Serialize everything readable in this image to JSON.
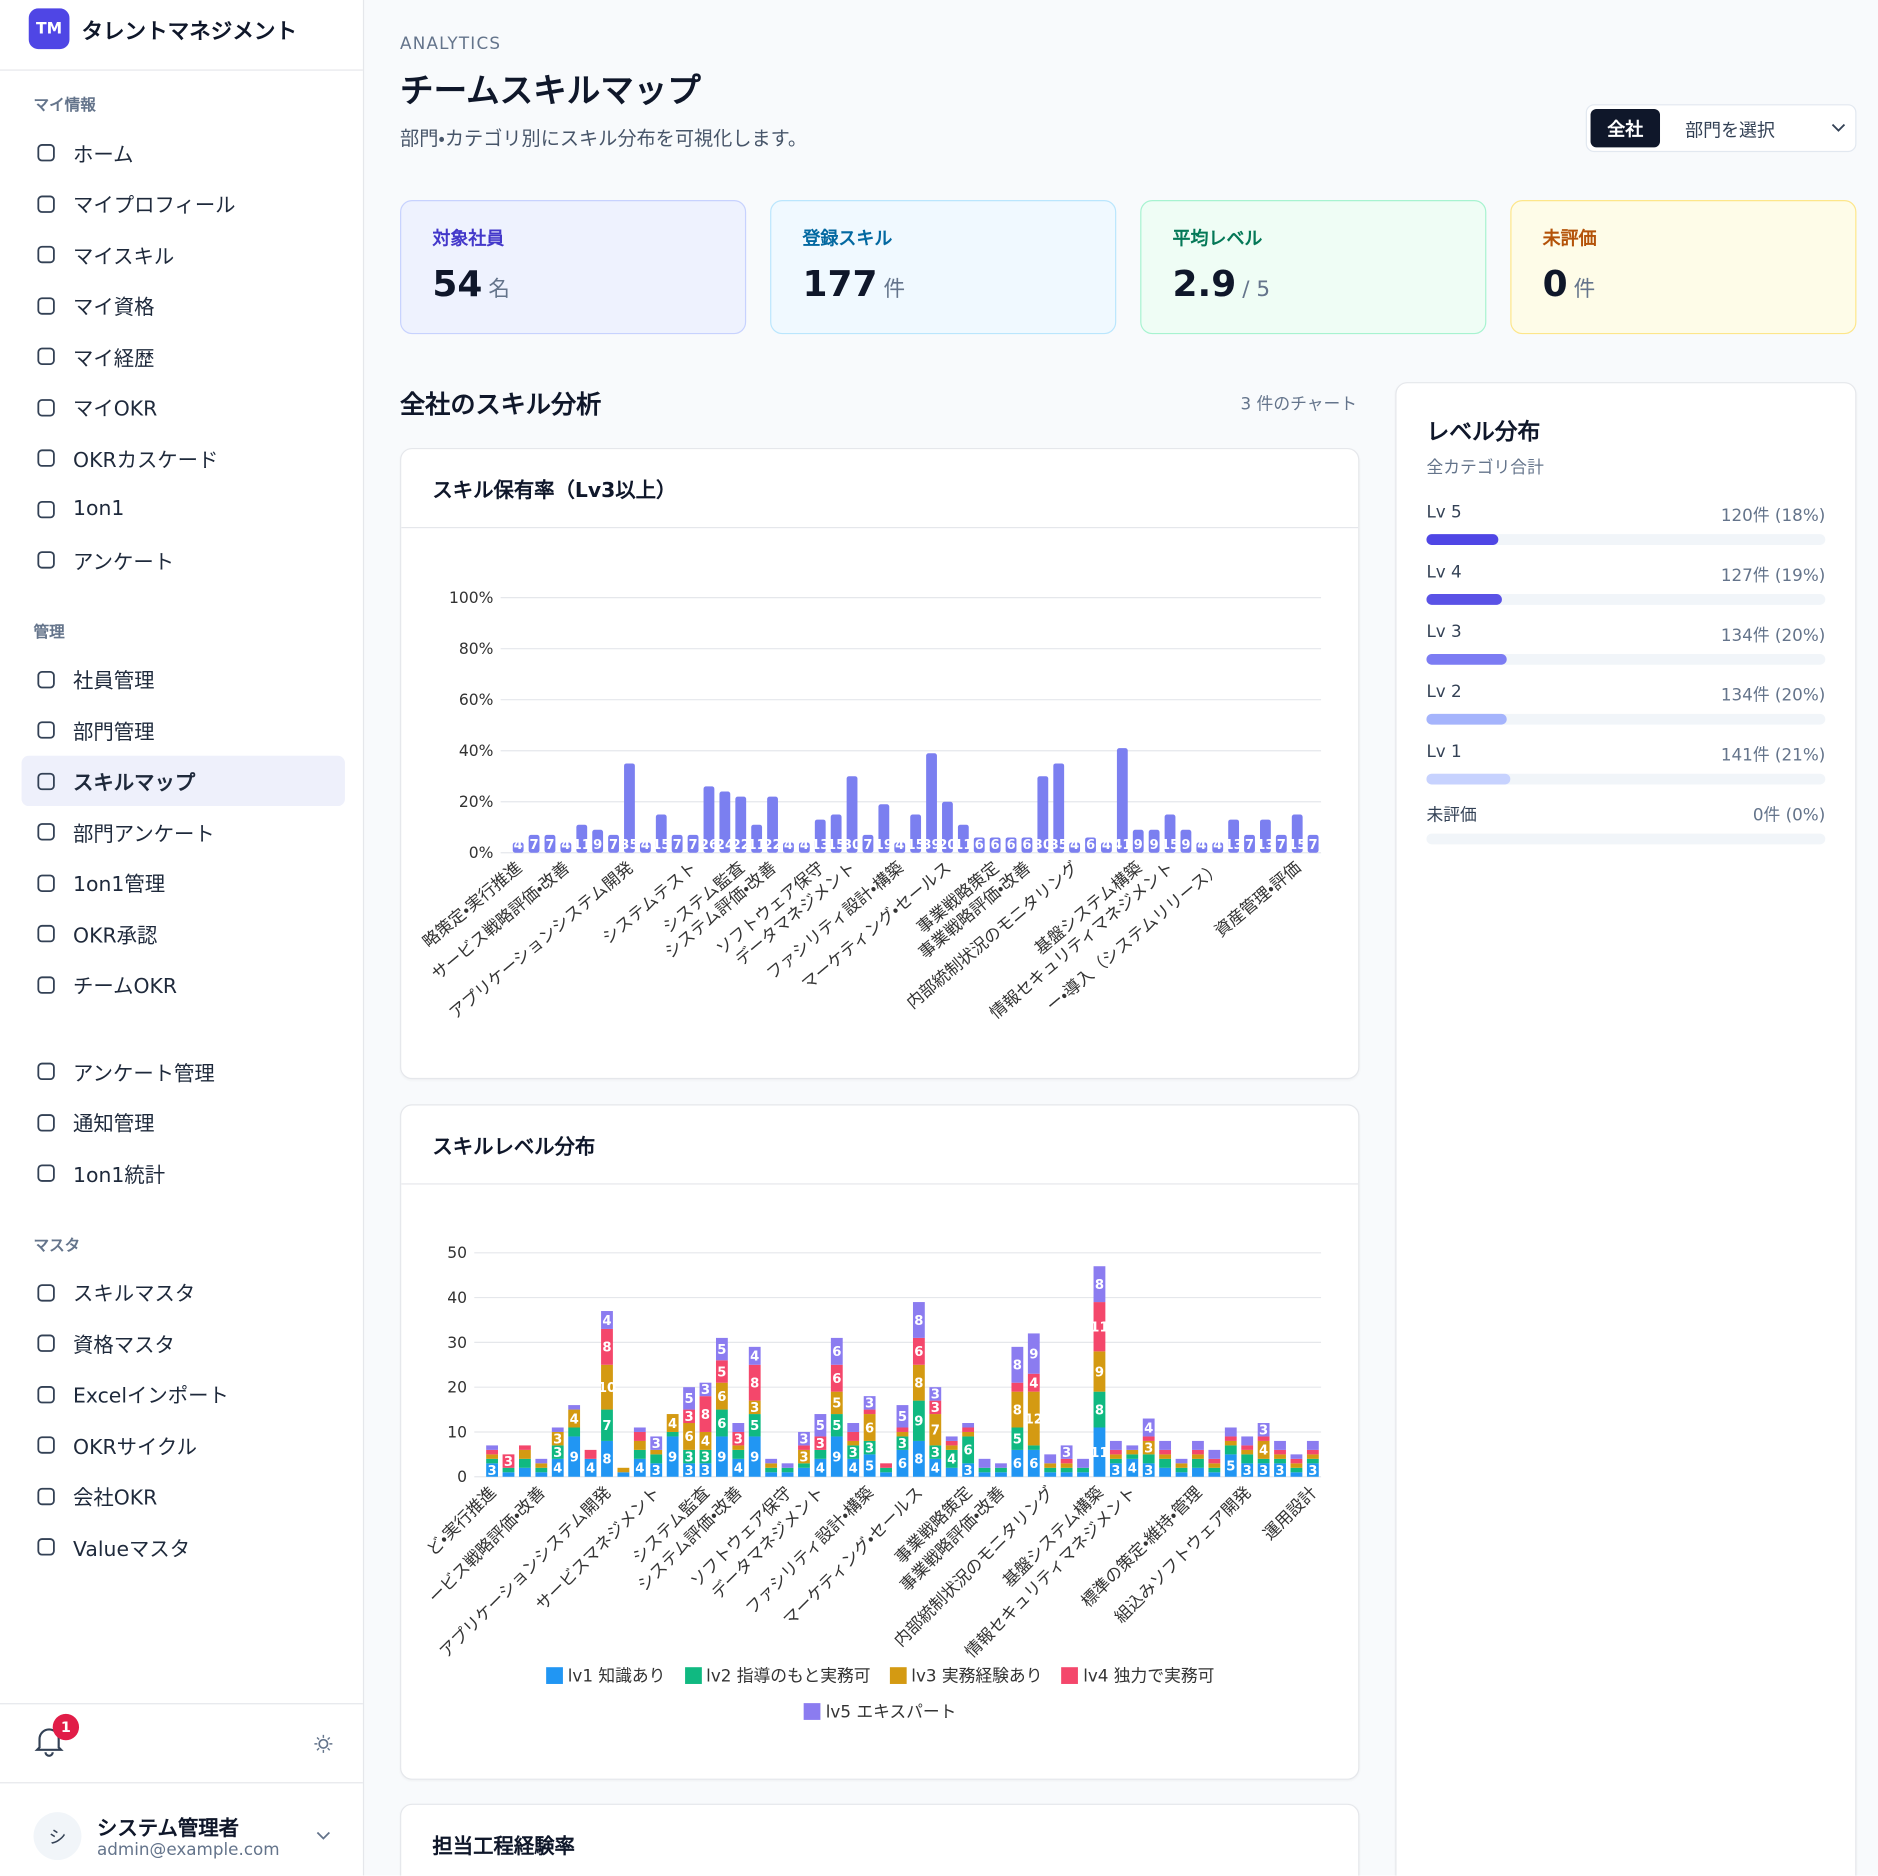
{
  "sidebar": {
    "logo": "TM",
    "app_name": "タレントマネジメント",
    "groups": [
      {
        "title": "マイ情報",
        "items": [
          "ホーム",
          "マイプロフィール",
          "マイスキル",
          "マイ資格",
          "マイ経歴",
          "マイOKR",
          "OKRカスケード",
          "1on1",
          "アンケート"
        ]
      },
      {
        "title": "管理",
        "items": [
          "社員管理",
          "部門管理",
          "スキルマップ",
          "部門アンケート",
          "1on1管理",
          "OKR承認",
          "チームOKR"
        ]
      },
      {
        "items": [
          "アンケート管理",
          "通知管理",
          "1on1統計"
        ]
      },
      {
        "title": "マスタ",
        "items": [
          "スキルマスタ",
          "資格マスタ",
          "Excelインポート",
          "OKRサイクル",
          "会社OKR",
          "Valueマスタ"
        ]
      }
    ],
    "active_item": "スキルマップ",
    "notification_count": 1,
    "user": {
      "initial": "シ",
      "name": "システム管理者",
      "email": "admin@example.com"
    }
  },
  "header": {
    "eyebrow": "ANALYTICS",
    "title": "チームスキルマップ",
    "subtitle": "部門・カテゴリ別にスキル分布を可視化します。",
    "scope_button": "全社",
    "dept_select": "部門を選択"
  },
  "stats": [
    {
      "label": "対象社員",
      "value": 54,
      "unit": "名"
    },
    {
      "label": "登録スキル",
      "value": 177,
      "unit": "件"
    },
    {
      "label": "平均レベル",
      "value": 2.9,
      "unit": "/ 5"
    },
    {
      "label": "未評価",
      "value": 0,
      "unit": "件"
    }
  ],
  "section": {
    "title": "全社のスキル分析",
    "count_note": "3 件のチャート"
  },
  "chart_data": [
    {
      "type": "bar",
      "title": "スキル保有率（Lv3以上）",
      "categories": [
        "略策定・実行推進",
        null,
        null,
        "サービス戦略評価・改善",
        null,
        null,
        null,
        "アプリケーションシステム開発",
        null,
        null,
        null,
        "システムテスト",
        null,
        null,
        "システム監査",
        null,
        "システム評価・改善",
        null,
        null,
        "ソフトウェア保守",
        null,
        "データマネジメント",
        null,
        null,
        "ファシリティ設計・構築",
        null,
        null,
        "マーケティング・セールス",
        null,
        null,
        "事業戦略策定",
        null,
        "事業戦略評価・改善",
        null,
        null,
        "内部統制状況のモニタリング",
        null,
        null,
        null,
        "基盤システム構築",
        null,
        "情報セキュリティマネジメント",
        null,
        null,
        "ー・導入（システムリリース）",
        null,
        null,
        null,
        null,
        "資産管理・評価",
        null
      ],
      "values": [
        4,
        7,
        7,
        4,
        11,
        9,
        7,
        35,
        4,
        15,
        7,
        7,
        26,
        24,
        22,
        11,
        22,
        4,
        4,
        13,
        15,
        30,
        7,
        19,
        4,
        15,
        39,
        20,
        11,
        6,
        6,
        6,
        6,
        30,
        35,
        4,
        6,
        4,
        41,
        9,
        9,
        15,
        9,
        4,
        4,
        13,
        7,
        13,
        7,
        15,
        7
      ],
      "color": "#7b7ff0",
      "ylim": [
        0,
        100
      ],
      "yticks": [
        {
          "value": 0,
          "label": "0%"
        },
        {
          "value": 20,
          "label": "20%"
        },
        {
          "value": 40,
          "label": "40%"
        },
        {
          "value": 60,
          "label": "60%"
        },
        {
          "value": 80,
          "label": "80%"
        },
        {
          "value": 100,
          "label": "100%"
        }
      ],
      "grid": true
    },
    {
      "type": "stacked_bar",
      "title": "スキルレベル分布",
      "categories": [
        "ど・実行推進",
        null,
        null,
        "ービス戦略評価・改善",
        null,
        null,
        null,
        "アプリケーションシステム開発",
        null,
        null,
        "サービスマネジメント",
        null,
        null,
        "システム監査",
        null,
        "システム評価・改善",
        null,
        null,
        "ソフトウェア保守",
        null,
        "データマネジメント",
        null,
        null,
        "ファシリティ設計・構築",
        null,
        null,
        "マーケティング・セールス",
        null,
        null,
        "事業戦略策定",
        null,
        "事業戦略評価・改善",
        null,
        null,
        "内部統制状況のモニタリング",
        null,
        null,
        "基盤システム構築",
        null,
        "情報セキュリティマネジメント",
        null,
        null,
        null,
        "標準の策定・維持・管理",
        null,
        null,
        "組込みソフトウェア開発",
        null,
        null,
        null,
        "運用設計"
      ],
      "series": [
        {
          "name": "lv1 知識あり",
          "color": "#2196f3",
          "values": [
            3,
            1,
            2,
            1,
            4,
            9,
            4,
            8,
            1,
            4,
            3,
            9,
            3,
            3,
            9,
            4,
            9,
            1,
            1,
            2,
            4,
            9,
            4,
            5,
            1,
            6,
            8,
            4,
            2,
            3,
            1,
            1,
            6,
            6,
            1,
            1,
            1,
            11,
            3,
            4,
            3,
            2,
            1,
            2,
            1,
            5,
            3,
            3,
            3,
            1,
            3
          ]
        },
        {
          "name": "lv2 指導のもと実務可",
          "color": "#10b981",
          "values": [
            1,
            1,
            2,
            1,
            3,
            2,
            0,
            7,
            0,
            2,
            2,
            1,
            3,
            3,
            6,
            2,
            5,
            1,
            1,
            1,
            2,
            5,
            3,
            3,
            1,
            3,
            9,
            3,
            4,
            6,
            1,
            1,
            5,
            1,
            1,
            1,
            1,
            8,
            1,
            1,
            2,
            2,
            1,
            2,
            1,
            2,
            2,
            1,
            1,
            1,
            1
          ]
        },
        {
          "name": "lv3 実務経験あり",
          "color": "#d49a12",
          "values": [
            1,
            0,
            2,
            1,
            3,
            4,
            0,
            10,
            1,
            2,
            1,
            4,
            6,
            4,
            6,
            1,
            3,
            1,
            0,
            3,
            0,
            5,
            1,
            6,
            0,
            1,
            8,
            7,
            1,
            1,
            0,
            0,
            8,
            12,
            1,
            1,
            0,
            9,
            1,
            1,
            3,
            1,
            1,
            1,
            1,
            1,
            1,
            4,
            1,
            1,
            1
          ]
        },
        {
          "name": "lv4 独力で実務可",
          "color": "#f4476b",
          "values": [
            1,
            3,
            1,
            0,
            0,
            0,
            2,
            8,
            0,
            2,
            0,
            0,
            3,
            8,
            5,
            3,
            8,
            0,
            0,
            1,
            3,
            6,
            2,
            1,
            1,
            1,
            6,
            3,
            1,
            1,
            0,
            0,
            2,
            4,
            0,
            1,
            0,
            11,
            1,
            0,
            1,
            1,
            0,
            1,
            1,
            1,
            1,
            1,
            1,
            1,
            1
          ]
        },
        {
          "name": "lv5 エキスパート",
          "color": "#8b7cf0",
          "values": [
            1,
            0,
            0,
            1,
            1,
            1,
            0,
            4,
            0,
            1,
            3,
            0,
            5,
            3,
            5,
            2,
            4,
            1,
            1,
            3,
            5,
            6,
            2,
            3,
            0,
            5,
            8,
            3,
            1,
            1,
            2,
            1,
            8,
            9,
            2,
            3,
            2,
            8,
            2,
            1,
            4,
            2,
            1,
            2,
            2,
            2,
            2,
            3,
            2,
            1,
            2
          ]
        }
      ],
      "ylim": [
        0,
        50
      ],
      "yticks": [
        0,
        10,
        20,
        30,
        40,
        50
      ],
      "grid": true,
      "legend": "bottom"
    },
    {
      "type": "bar",
      "title": "担当工程経験率"
    }
  ],
  "level_panel": {
    "title": "レベル分布",
    "subtitle": "全カテゴリ合計",
    "levels": [
      {
        "label": "Lv 5",
        "value": 18,
        "value_label": "120件 (18%)",
        "color": "#4f46e5"
      },
      {
        "label": "Lv 4",
        "value": 19,
        "value_label": "127件 (19%)",
        "color": "#5a52e6"
      },
      {
        "label": "Lv 3",
        "value": 20,
        "value_label": "134件 (20%)",
        "color": "#7c7cf3"
      },
      {
        "label": "Lv 2",
        "value": 20,
        "value_label": "134件 (20%)",
        "color": "#a5b4fc"
      },
      {
        "label": "Lv 1",
        "value": 21,
        "value_label": "141件 (21%)",
        "color": "#c7d2fe"
      },
      {
        "label": "未評価",
        "value": 0,
        "value_label": "0件 (0%)",
        "color": "#cbd5e1"
      }
    ]
  }
}
